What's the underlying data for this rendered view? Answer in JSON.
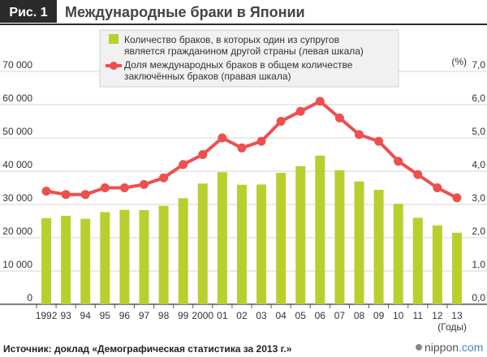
{
  "header": {
    "badge": "Рис. 1",
    "title": "Международные браки в Японии"
  },
  "legend": {
    "bar_label_line1": "Количество браков, в которых один из супругов",
    "bar_label_line2": "является гражданином другой страны (левая шкала)",
    "line_label_line1": "Доля международных браков в общем количестве",
    "line_label_line2": "заключённых браков (правая шкала)"
  },
  "axes": {
    "left_ticks": [
      "0",
      "10 000",
      "20 000",
      "30 000",
      "40 000",
      "50 000",
      "60 000",
      "70 000"
    ],
    "right_ticks": [
      "0,0",
      "1,0",
      "2,0",
      "3,0",
      "4,0",
      "5,0",
      "6,0",
      "7,0"
    ],
    "right_unit": "(%)",
    "x_unit": "(Годы)"
  },
  "footer": {
    "source": "Источник: доклад «Демографическая статистика за 2013 г.»",
    "brand_prefix": "nippon",
    "brand_suffix": ".com"
  },
  "colors": {
    "badge_bg": "#2b2b2b",
    "bar": "#b9cf2e",
    "line": "#ee4f4f",
    "grid": "#d6d6d6",
    "axis_text": "#333333",
    "brand_accent": "#3d86c6"
  },
  "chart_data": {
    "type": "bar+line",
    "categories": [
      "1992",
      "93",
      "94",
      "95",
      "96",
      "97",
      "98",
      "99",
      "2000",
      "01",
      "02",
      "03",
      "04",
      "05",
      "06",
      "07",
      "08",
      "09",
      "10",
      "11",
      "12",
      "13"
    ],
    "series": [
      {
        "name": "Количество браков, в которых один из супругов является гражданином другой страны (левая шкала)",
        "type": "bar",
        "axis": "left",
        "values": [
          25900,
          26600,
          25700,
          27700,
          28400,
          28300,
          29600,
          31900,
          36300,
          39700,
          35900,
          36000,
          39500,
          41500,
          44700,
          40300,
          36900,
          34400,
          30200,
          26000,
          23700,
          21500
        ]
      },
      {
        "name": "Доля международных браков в общем количестве заключённых браков (правая шкала)",
        "type": "line",
        "axis": "right",
        "values": [
          3.4,
          3.3,
          3.3,
          3.5,
          3.5,
          3.6,
          3.8,
          4.2,
          4.5,
          5.0,
          4.7,
          4.9,
          5.5,
          5.8,
          6.1,
          5.6,
          5.1,
          4.9,
          4.3,
          3.9,
          3.5,
          3.2
        ]
      }
    ],
    "ylim_left": [
      0,
      70000
    ],
    "ylim_right": [
      0,
      7
    ],
    "grid": true,
    "legend_position": "top"
  }
}
